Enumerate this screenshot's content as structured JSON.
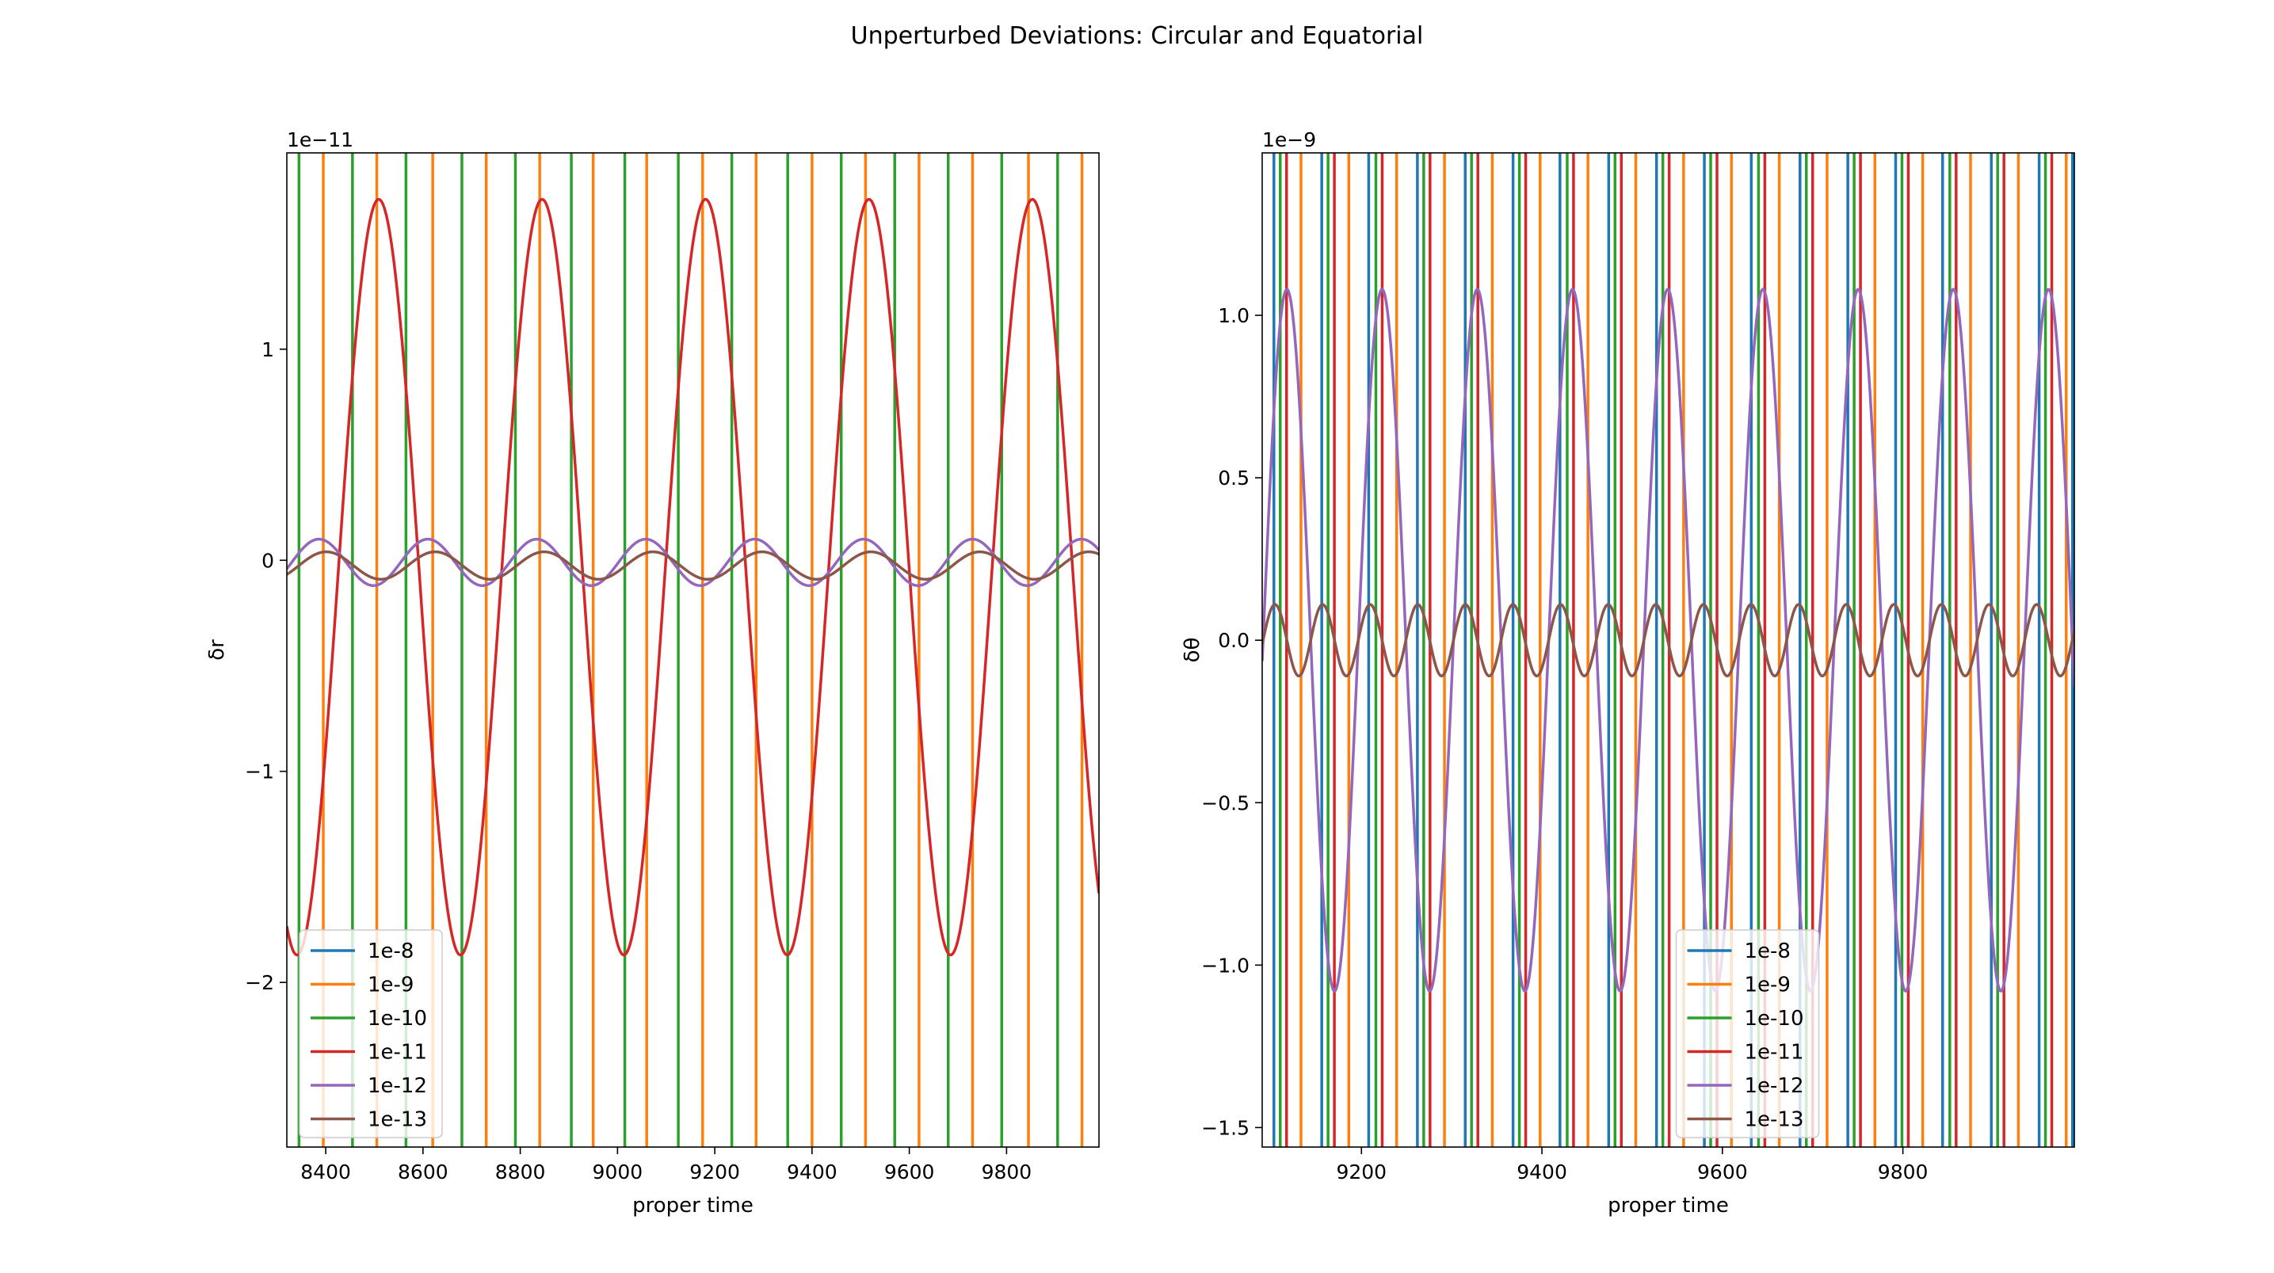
{
  "figure": {
    "title": "Unperturbed Deviations: Circular and Equatorial"
  },
  "colors": {
    "1e-8": "#1f77b4",
    "1e-9": "#ff7f0e",
    "1e-10": "#2ca02c",
    "1e-11": "#d62728",
    "1e-12": "#9467bd",
    "1e-13": "#8c564b"
  },
  "chart_data": [
    {
      "type": "line",
      "xlabel": "proper time",
      "ylabel": "δr",
      "offset_text": "1e−11",
      "scale": 1e-11,
      "xlim": [
        8320,
        9990
      ],
      "ylim": [
        -2.78,
        1.93
      ],
      "xticks": [
        8400,
        8600,
        8800,
        9000,
        9200,
        9400,
        9600,
        9800
      ],
      "xtick_labels": [
        "8400",
        "8600",
        "8800",
        "9000",
        "9200",
        "9400",
        "9600",
        "9800"
      ],
      "yticks": [
        1,
        0,
        -1,
        -2
      ],
      "ytick_labels": [
        "1",
        "0",
        "−1",
        "−2"
      ],
      "legend_position": "lower-left",
      "legend": [
        "1e-8",
        "1e-9",
        "1e-10",
        "1e-11",
        "1e-12",
        "1e-13"
      ],
      "series": [
        {
          "name": "1e-8",
          "kind": "offscale",
          "x": []
        },
        {
          "name": "1e-9",
          "kind": "offscale",
          "x": [
            8395,
            8505,
            8620,
            8730,
            8840,
            8950,
            9060,
            9175,
            9285,
            9400,
            9510,
            9620,
            9730,
            9845,
            9955
          ]
        },
        {
          "name": "1e-10",
          "kind": "offscale",
          "x": [
            8345,
            8455,
            8565,
            8680,
            8790,
            8905,
            9015,
            9125,
            9235,
            9350,
            9460,
            9570,
            9680,
            9790,
            9905
          ]
        },
        {
          "name": "1e-11",
          "kind": "sine",
          "offset": -0.08,
          "amplitude": 1.79,
          "period": 336,
          "phase_x": 8425
        },
        {
          "name": "1e-12",
          "kind": "sine",
          "offset": -0.01,
          "amplitude": 0.11,
          "period": 224,
          "phase_x": 8330
        },
        {
          "name": "1e-13",
          "kind": "sine",
          "offset": -0.025,
          "amplitude": 0.065,
          "period": 224,
          "phase_x": 8345
        }
      ]
    },
    {
      "type": "line",
      "xlabel": "proper time",
      "ylabel": "δθ",
      "offset_text": "1e−9",
      "scale": 1e-09,
      "xlim": [
        9090,
        9990
      ],
      "ylim": [
        -1.56,
        1.5
      ],
      "xticks": [
        9200,
        9400,
        9600,
        9800
      ],
      "xtick_labels": [
        "9200",
        "9400",
        "9600",
        "9800"
      ],
      "yticks": [
        1.0,
        0.5,
        0.0,
        -0.5,
        -1.0,
        -1.5
      ],
      "ytick_labels": [
        "1.0",
        "0.5",
        "0.0",
        "−0.5",
        "−1.0",
        "−1.5"
      ],
      "legend_position": "lower-center",
      "legend": [
        "1e-8",
        "1e-9",
        "1e-10",
        "1e-11",
        "1e-12",
        "1e-13"
      ],
      "series": [
        {
          "name": "1e-8",
          "kind": "offscale",
          "x": [
            9103,
            9156,
            9208,
            9262,
            9315,
            9368,
            9420,
            9474,
            9527,
            9580,
            9632,
            9686,
            9739,
            9792,
            9844,
            9898,
            9951,
            9988
          ]
        },
        {
          "name": "1e-9",
          "kind": "offscale",
          "x": [
            9133,
            9186,
            9239,
            9292,
            9345,
            9398,
            9451,
            9504,
            9557,
            9610,
            9663,
            9716,
            9769,
            9822,
            9875,
            9928,
            9981
          ]
        },
        {
          "name": "1e-10",
          "kind": "offscale",
          "x": [
            9110,
            9163,
            9216,
            9269,
            9322,
            9375,
            9428,
            9481,
            9534,
            9587,
            9640,
            9693,
            9746,
            9799,
            9852,
            9905,
            9958
          ]
        },
        {
          "name": "1e-11",
          "kind": "offscale",
          "x": [
            9117,
            9170,
            9223,
            9276,
            9329,
            9382,
            9435,
            9488,
            9541,
            9594,
            9647,
            9700,
            9753,
            9806,
            9859,
            9912,
            9965
          ]
        },
        {
          "name": "1e-12",
          "kind": "sine",
          "offset": 0.0,
          "amplitude": 1.08,
          "period": 105.5,
          "phase_x": 9091
        },
        {
          "name": "1e-13",
          "kind": "sine",
          "offset": 0.0,
          "amplitude": 0.11,
          "period": 52.75,
          "phase_x": 9091
        }
      ]
    }
  ]
}
